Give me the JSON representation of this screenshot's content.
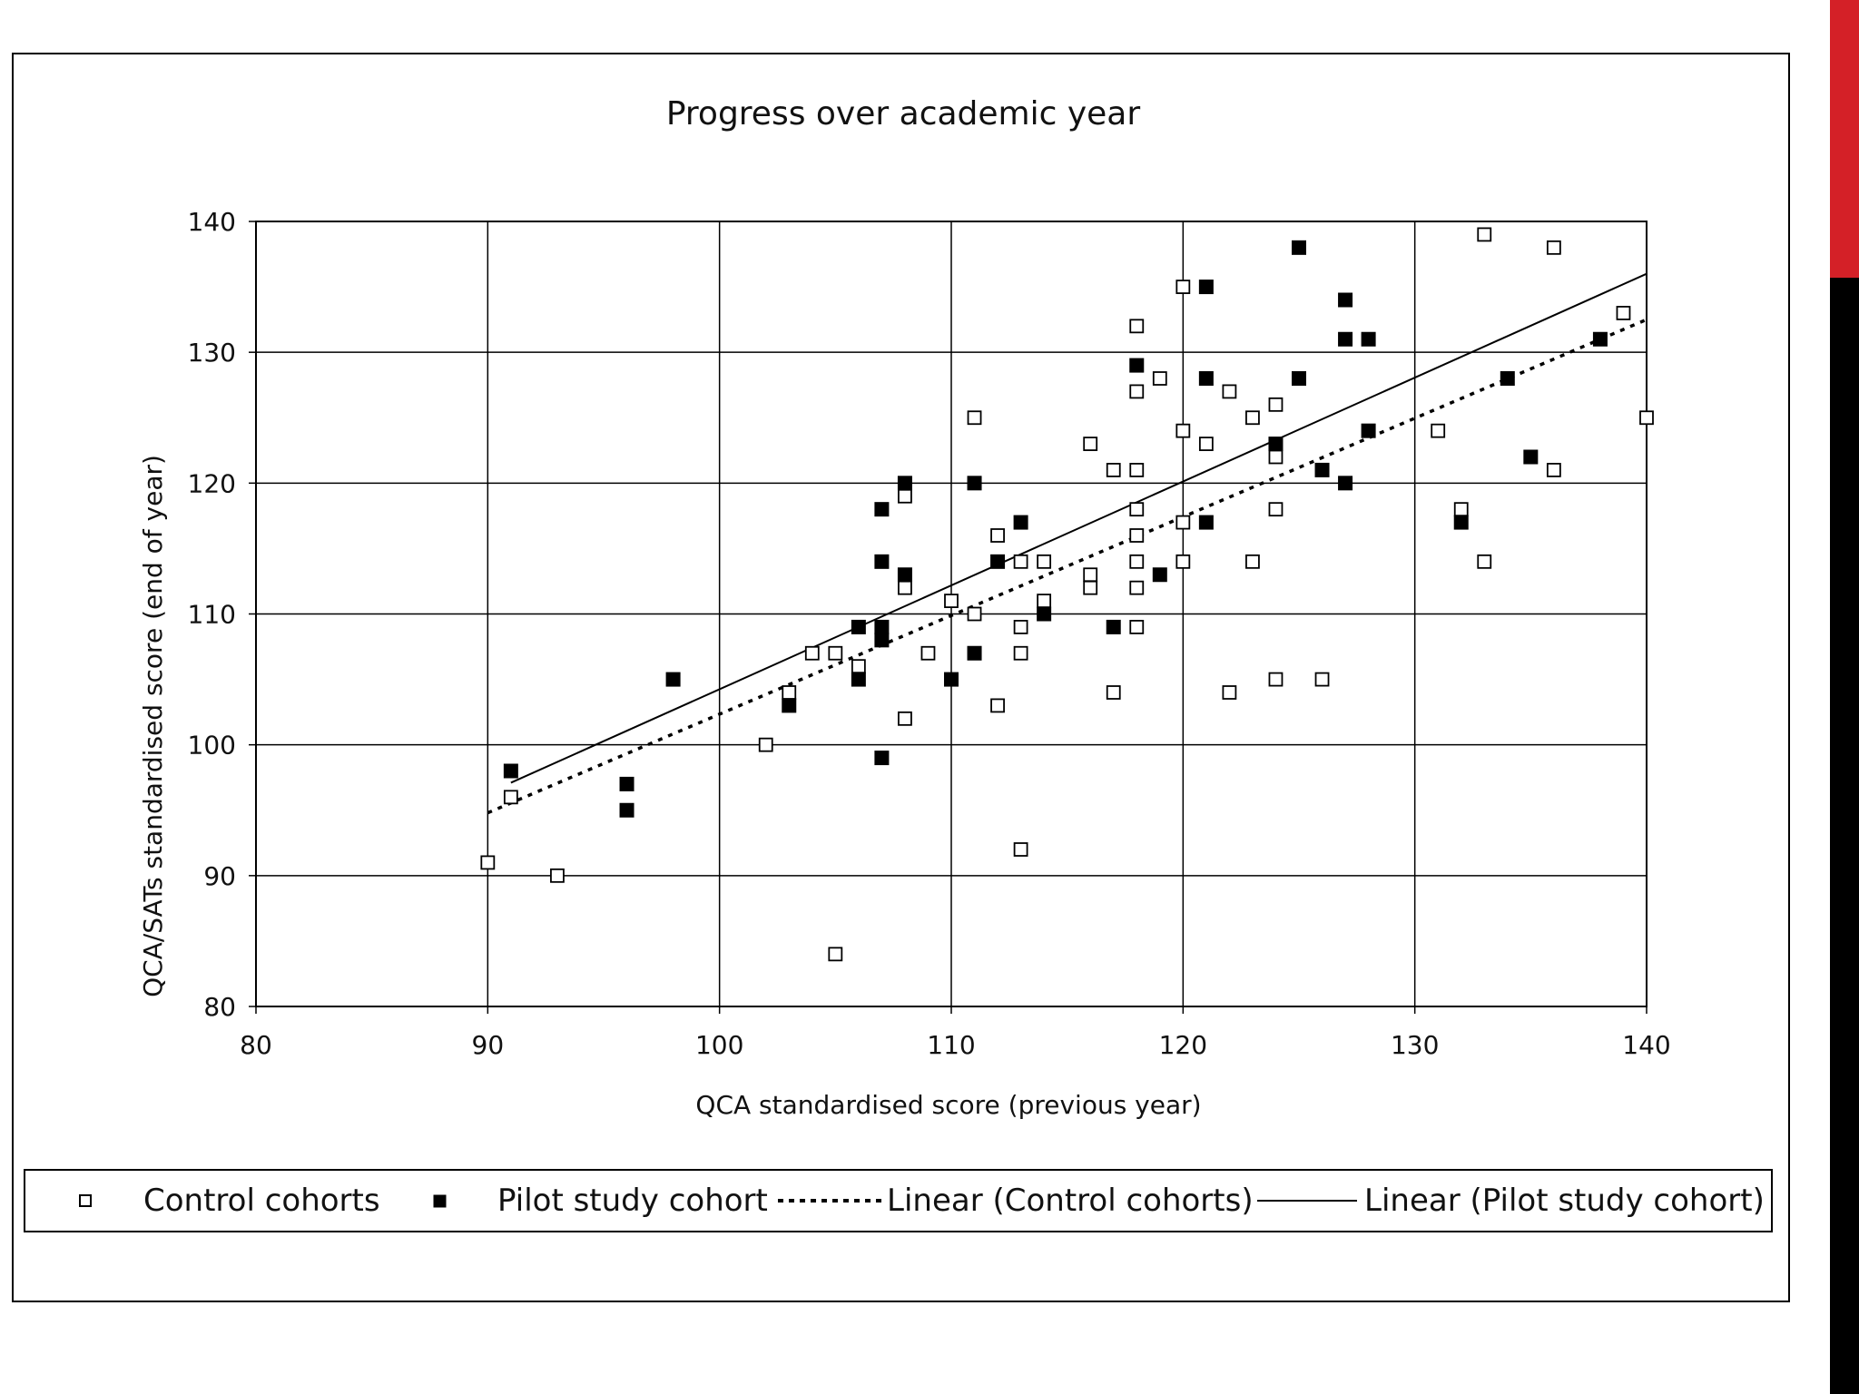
{
  "colors": {
    "accent_red": "#d42027",
    "accent_black": "#000000",
    "ink": "#000000"
  },
  "chart_data": {
    "type": "scatter",
    "title": "Progress over academic year",
    "xlabel": "QCA standardised score (previous year)",
    "ylabel": "QCA/SATs standardised score (end of year)",
    "xlim": [
      80,
      140
    ],
    "ylim": [
      80,
      140
    ],
    "xticks": [
      80,
      90,
      100,
      110,
      120,
      130,
      140
    ],
    "yticks": [
      80,
      90,
      100,
      110,
      120,
      130,
      140
    ],
    "grid": true,
    "legend_position": "bottom",
    "series": [
      {
        "name": "Control cohorts",
        "marker": "hollow-square",
        "points": [
          [
            90,
            91
          ],
          [
            91,
            96
          ],
          [
            93,
            90
          ],
          [
            102,
            100
          ],
          [
            103,
            104
          ],
          [
            104,
            107
          ],
          [
            105,
            107
          ],
          [
            105,
            84
          ],
          [
            106,
            106
          ],
          [
            108,
            119
          ],
          [
            108,
            112
          ],
          [
            108,
            102
          ],
          [
            109,
            107
          ],
          [
            110,
            111
          ],
          [
            111,
            125
          ],
          [
            111,
            110
          ],
          [
            112,
            116
          ],
          [
            112,
            103
          ],
          [
            113,
            114
          ],
          [
            113,
            109
          ],
          [
            113,
            107
          ],
          [
            113,
            92
          ],
          [
            114,
            114
          ],
          [
            114,
            111
          ],
          [
            116,
            123
          ],
          [
            116,
            113
          ],
          [
            116,
            112
          ],
          [
            117,
            121
          ],
          [
            117,
            104
          ],
          [
            118,
            132
          ],
          [
            118,
            127
          ],
          [
            118,
            121
          ],
          [
            118,
            118
          ],
          [
            118,
            116
          ],
          [
            118,
            114
          ],
          [
            118,
            112
          ],
          [
            118,
            109
          ],
          [
            119,
            128
          ],
          [
            120,
            135
          ],
          [
            120,
            124
          ],
          [
            120,
            117
          ],
          [
            120,
            114
          ],
          [
            121,
            123
          ],
          [
            122,
            127
          ],
          [
            122,
            104
          ],
          [
            123,
            125
          ],
          [
            123,
            114
          ],
          [
            124,
            126
          ],
          [
            124,
            122
          ],
          [
            124,
            118
          ],
          [
            124,
            105
          ],
          [
            126,
            105
          ],
          [
            131,
            124
          ],
          [
            132,
            118
          ],
          [
            133,
            139
          ],
          [
            133,
            114
          ],
          [
            136,
            138
          ],
          [
            136,
            121
          ],
          [
            139,
            133
          ],
          [
            140,
            125
          ]
        ]
      },
      {
        "name": "Pilot study cohort",
        "marker": "filled-square",
        "points": [
          [
            91,
            98
          ],
          [
            96,
            97
          ],
          [
            96,
            95
          ],
          [
            98,
            105
          ],
          [
            103,
            103
          ],
          [
            106,
            109
          ],
          [
            106,
            105
          ],
          [
            107,
            118
          ],
          [
            107,
            114
          ],
          [
            107,
            109
          ],
          [
            107,
            108
          ],
          [
            107,
            99
          ],
          [
            108,
            120
          ],
          [
            108,
            113
          ],
          [
            110,
            105
          ],
          [
            111,
            120
          ],
          [
            111,
            107
          ],
          [
            112,
            114
          ],
          [
            113,
            117
          ],
          [
            114,
            110
          ],
          [
            117,
            109
          ],
          [
            118,
            129
          ],
          [
            119,
            113
          ],
          [
            121,
            135
          ],
          [
            121,
            128
          ],
          [
            121,
            117
          ],
          [
            124,
            123
          ],
          [
            125,
            138
          ],
          [
            125,
            128
          ],
          [
            126,
            121
          ],
          [
            127,
            134
          ],
          [
            127,
            131
          ],
          [
            127,
            120
          ],
          [
            128,
            131
          ],
          [
            128,
            124
          ],
          [
            132,
            117
          ],
          [
            134,
            128
          ],
          [
            135,
            122
          ],
          [
            138,
            131
          ]
        ]
      },
      {
        "name": "Linear (Control cohorts)",
        "type": "trendline",
        "style": "dotted",
        "line": [
          [
            90,
            94.8
          ],
          [
            140,
            132.5
          ]
        ]
      },
      {
        "name": "Linear (Pilot study cohort)",
        "type": "trendline",
        "style": "solid",
        "line": [
          [
            91,
            97.1
          ],
          [
            140,
            136
          ]
        ]
      }
    ]
  }
}
